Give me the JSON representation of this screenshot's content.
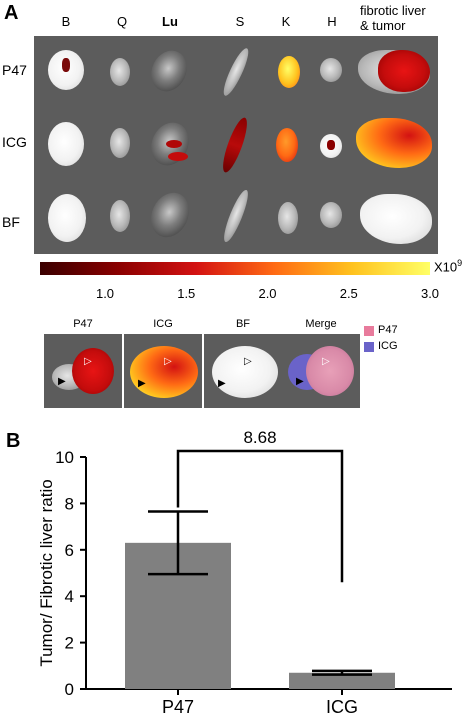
{
  "panel_a": {
    "letter": "A",
    "columns": [
      "B",
      "Q",
      "Lu",
      "S",
      "K",
      "H"
    ],
    "tumor_column_label_line1": "fibrotic liver",
    "tumor_column_label_line2": "& tumor",
    "rows": [
      "P47",
      "ICG",
      "BF"
    ],
    "colorbar": {
      "unit": "X10",
      "unit_exponent": "9",
      "ticks": [
        "1.0",
        "1.5",
        "2.0",
        "2.5",
        "3.0"
      ],
      "tick_values": [
        1.0,
        1.5,
        2.0,
        2.5,
        3.0
      ],
      "range": [
        0.6,
        3.0
      ],
      "colors": [
        "#3a0000",
        "#8a0000",
        "#d31212",
        "#ff6a14",
        "#ffc21e",
        "#ffff66"
      ]
    },
    "small_panels": [
      "P47",
      "ICG",
      "BF",
      "Merge"
    ],
    "merge_legend": [
      {
        "label": "P47",
        "color": "#e87b9c"
      },
      {
        "label": "ICG",
        "color": "#6a63c9"
      }
    ]
  },
  "panel_b": {
    "letter": "B",
    "chart_data": {
      "type": "bar",
      "categories": [
        "P47",
        "ICG"
      ],
      "values": [
        6.3,
        0.7
      ],
      "error_upper": [
        7.65,
        0.78
      ],
      "error_lower": [
        4.95,
        0.62
      ],
      "ylabel": "Tumor/ Fibrotic liver ratio",
      "xlabel": "",
      "ylim": [
        0,
        10
      ],
      "yticks": [
        0,
        2,
        4,
        6,
        8,
        10
      ],
      "annotation": "8.68",
      "bar_color": "#808080"
    }
  }
}
